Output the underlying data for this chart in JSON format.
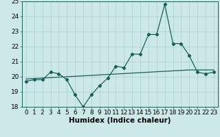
{
  "title": "",
  "xlabel": "Humidex (Indice chaleur)",
  "bg_color": "#cde8e8",
  "line_color": "#1a5e5a",
  "grid_color": "#aacece",
  "x_data": [
    0,
    1,
    2,
    3,
    4,
    5,
    6,
    7,
    8,
    9,
    10,
    11,
    12,
    13,
    14,
    15,
    16,
    17,
    18,
    19,
    20,
    21,
    22,
    23
  ],
  "y_data": [
    19.7,
    19.8,
    19.8,
    20.3,
    20.2,
    19.8,
    18.8,
    18.0,
    18.8,
    19.4,
    19.9,
    20.7,
    20.6,
    21.5,
    21.5,
    22.8,
    22.8,
    24.8,
    22.2,
    22.2,
    21.4,
    20.3,
    20.2,
    20.3
  ],
  "y_trend": [
    19.85,
    19.88,
    19.91,
    19.94,
    19.97,
    20.0,
    20.03,
    20.06,
    20.09,
    20.12,
    20.15,
    20.18,
    20.21,
    20.24,
    20.27,
    20.3,
    20.33,
    20.36,
    20.39,
    20.42,
    20.45,
    20.45,
    20.45,
    20.45
  ],
  "ylim": [
    18,
    25
  ],
  "xlim": [
    -0.5,
    23.5
  ],
  "yticks": [
    18,
    19,
    20,
    21,
    22,
    23,
    24,
    25
  ],
  "xticks": [
    0,
    1,
    2,
    3,
    4,
    5,
    6,
    7,
    8,
    9,
    10,
    11,
    12,
    13,
    14,
    15,
    16,
    17,
    18,
    19,
    20,
    21,
    22,
    23
  ],
  "fontsize": 6.5,
  "xlabel_fontsize": 7.5
}
